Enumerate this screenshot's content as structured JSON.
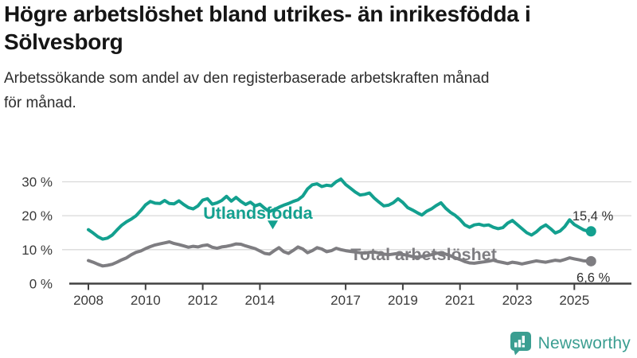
{
  "header": {
    "title_lines": [
      "Högre arbetslöshet bland utrikes- än inrikesfödda i",
      "Sölvesborg"
    ],
    "subtitle_lines": [
      "Arbetssökande som andel av den registerbaserade arbetskraften månad",
      "för månad."
    ]
  },
  "chart_data": {
    "type": "line",
    "title": "Högre arbetslöshet bland utrikes- än inrikesfödda i Sölvesborg",
    "subtitle": "Arbetssökande som andel av den registerbaserade arbetskraften månad för månad.",
    "unit": "%",
    "grid": "horizontal",
    "x_axis": {
      "ticks": [
        2008,
        2010,
        2012,
        2014,
        2017,
        2019,
        2021,
        2023,
        2025
      ],
      "tick_labels": [
        "2008",
        "2010",
        "2012",
        "2014",
        "2017",
        "2019",
        "2021",
        "2023",
        "2025"
      ]
    },
    "y_axis": {
      "ticks": [
        0,
        10,
        20,
        30
      ],
      "tick_labels": [
        "0 %",
        "10 %",
        "20 %",
        "30 %"
      ],
      "ylim": [
        0,
        33
      ]
    },
    "x_start": 2008.0,
    "x_step": 0.16667,
    "series": [
      {
        "name": "Utlandsfödda",
        "color": "#13a08f",
        "end_label": "15,4 %",
        "end_value": 15.4,
        "values": [
          15.9,
          14.9,
          13.8,
          13.1,
          13.4,
          14.3,
          15.8,
          17.2,
          18.2,
          19.0,
          20.0,
          21.5,
          23.2,
          24.2,
          23.7,
          23.6,
          24.5,
          23.6,
          23.5,
          24.4,
          23.3,
          22.4,
          22.0,
          22.9,
          24.6,
          25.0,
          23.4,
          23.8,
          24.5,
          25.7,
          24.3,
          25.4,
          24.2,
          23.3,
          24.0,
          22.9,
          23.4,
          22.2,
          21.2,
          21.8,
          22.5,
          23.1,
          23.6,
          24.2,
          24.7,
          25.8,
          27.9,
          29.1,
          29.4,
          28.6,
          29.0,
          28.8,
          30.0,
          30.8,
          29.2,
          28.1,
          27.0,
          26.1,
          26.3,
          26.7,
          25.2,
          24.0,
          22.9,
          23.1,
          23.8,
          25.0,
          23.9,
          22.4,
          21.7,
          20.9,
          20.2,
          21.3,
          22.0,
          23.0,
          23.8,
          22.2,
          21.0,
          20.1,
          18.9,
          17.3,
          16.6,
          17.3,
          17.5,
          17.1,
          17.3,
          16.6,
          16.2,
          16.5,
          17.8,
          18.6,
          17.4,
          16.2,
          15.0,
          14.3,
          15.2,
          16.5,
          17.3,
          16.2,
          14.9,
          15.5,
          16.8,
          18.8,
          17.4,
          16.6,
          15.8,
          15.4
        ]
      },
      {
        "name": "Total arbetslöshet",
        "color": "#7e7d81",
        "end_label": "6,6 %",
        "end_value": 6.6,
        "values": [
          6.8,
          6.3,
          5.7,
          5.2,
          5.4,
          5.7,
          6.3,
          7.0,
          7.6,
          8.5,
          9.2,
          9.6,
          10.3,
          10.9,
          11.4,
          11.7,
          12.0,
          12.3,
          11.8,
          11.5,
          11.1,
          10.7,
          11.0,
          10.8,
          11.2,
          11.4,
          10.7,
          10.4,
          10.8,
          11.0,
          11.3,
          11.7,
          11.6,
          11.1,
          10.7,
          10.3,
          9.6,
          8.9,
          8.7,
          9.7,
          10.6,
          9.4,
          8.9,
          9.8,
          10.8,
          10.2,
          9.1,
          9.7,
          10.6,
          10.2,
          9.4,
          9.7,
          10.4,
          10.0,
          9.7,
          9.5,
          9.3,
          9.1,
          9.0,
          9.2,
          9.3,
          9.0,
          8.7,
          8.5,
          8.7,
          8.9,
          8.6,
          8.3,
          8.0,
          7.8,
          8.0,
          8.2,
          8.5,
          8.9,
          9.1,
          8.7,
          8.2,
          7.6,
          7.1,
          6.5,
          6.1,
          6.0,
          6.2,
          6.4,
          6.6,
          6.9,
          6.5,
          6.2,
          5.9,
          6.3,
          6.1,
          5.8,
          6.1,
          6.4,
          6.7,
          6.5,
          6.3,
          6.6,
          6.9,
          6.7,
          7.1,
          7.6,
          7.3,
          7.0,
          6.7,
          6.6
        ]
      }
    ],
    "annotations": [
      {
        "text": "Utlandsfödda",
        "x": 2013.93,
        "y": 19.1,
        "series_index": 0,
        "arrow": {
          "x": 2014.45,
          "y": 16.0
        }
      },
      {
        "text": "Total arbetslöshet",
        "x": 2019.73,
        "y": 6.9,
        "series_index": 1
      }
    ]
  },
  "footer": {
    "brand": "Newsworthy",
    "brand_color": "#3b9e91",
    "logo_icon": "bar-chart-speech-bubble"
  }
}
